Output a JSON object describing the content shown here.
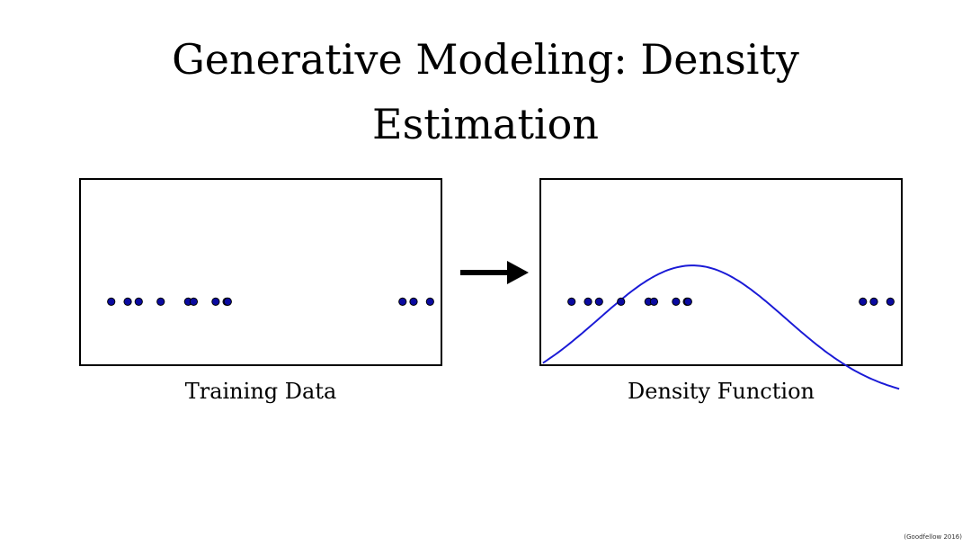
{
  "slide": {
    "title_line1": "Generative Modeling: Density",
    "title_line2": "Estimation",
    "caption_left": "Training Data",
    "caption_right": "Density Function",
    "citation": "(Goodfellow 2016)"
  },
  "figure": {
    "point_color": "#0a0aa0",
    "point_edge_color": "#000000",
    "curve_color": "#1a1ad6",
    "points_x": [
      -2.9,
      -2.75,
      -2.65,
      -2.45,
      -2.2,
      -2.15,
      -1.95,
      -1.85,
      -1.84,
      -0.25,
      -0.15,
      -0.0
    ],
    "x_range": [
      -3.0,
      0.0
    ],
    "curve": {
      "type": "gaussian",
      "mean": -1.8,
      "std": 0.85
    }
  }
}
